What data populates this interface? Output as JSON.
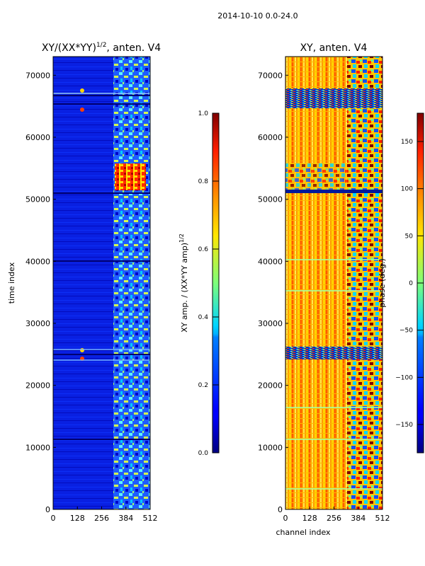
{
  "suptitle": "2014-10-10 0.0-24.0",
  "chart_data": [
    {
      "type": "heatmap",
      "title_base": "XY/(XX*YY)",
      "title_exp": "1/2",
      "title_suffix": ", anten. V4",
      "xlabel": "",
      "ylabel": "time index",
      "xlim": [
        0,
        512
      ],
      "ylim": [
        0,
        73000
      ],
      "xticks": [
        0,
        128,
        256,
        384,
        512
      ],
      "yticks": [
        0,
        10000,
        20000,
        30000,
        40000,
        50000,
        60000,
        70000
      ],
      "colorbar": {
        "label_base": "XY amp. / (XX*YY amp)",
        "label_exp": "1/2",
        "range": [
          0.0,
          1.0
        ],
        "ticks": [
          "0.0",
          "0.2",
          "0.4",
          "0.6",
          "0.8",
          "1.0"
        ],
        "tick_values": [
          0.0,
          0.2,
          0.4,
          0.6,
          0.8,
          1.0
        ]
      }
    },
    {
      "type": "heatmap",
      "title": "XY, anten. V4",
      "xlabel": "channel index",
      "ylabel": "",
      "xlim": [
        0,
        512
      ],
      "ylim": [
        0,
        73000
      ],
      "xticks": [
        0,
        128,
        256,
        384,
        512
      ],
      "yticks": [
        0,
        10000,
        20000,
        30000,
        40000,
        50000,
        60000,
        70000
      ],
      "colorbar": {
        "label": "phase (deg.)",
        "range": [
          -180,
          180
        ],
        "ticks": [
          "150",
          "100",
          "50",
          "0",
          "−50",
          "−100",
          "−150"
        ],
        "tick_values": [
          150,
          100,
          50,
          0,
          -50,
          -100,
          -150
        ]
      }
    }
  ]
}
